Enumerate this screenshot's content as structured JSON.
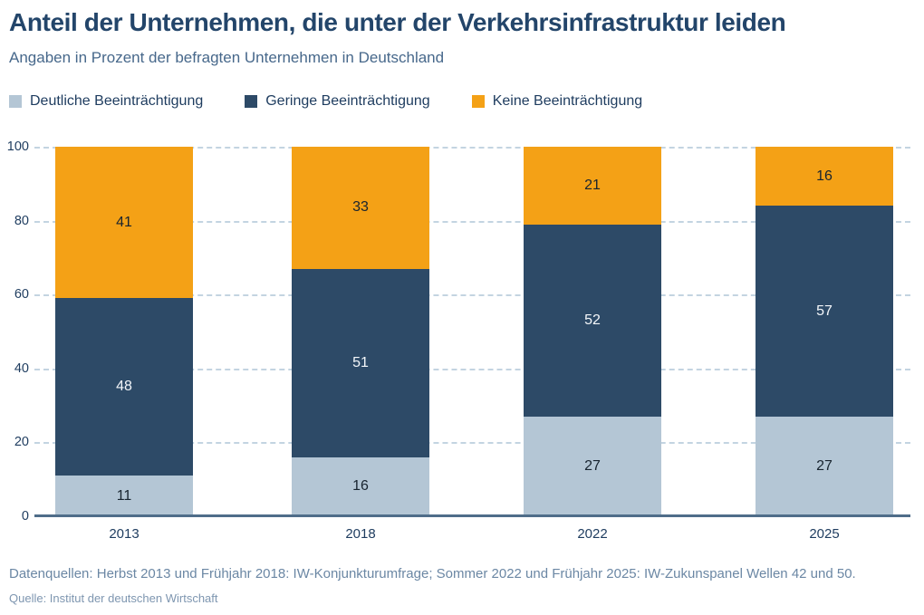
{
  "header": {
    "title": "Anteil der Unternehmen, die unter der Verkehrsinfrastruktur leiden",
    "subtitle": "Angaben in Prozent der befragten Unternehmen in Deutschland"
  },
  "legend": [
    {
      "label": "Deutliche Beeinträchtigung",
      "color": "#b4c6d5"
    },
    {
      "label": "Geringe Beeinträchtigung",
      "color": "#2d4a67"
    },
    {
      "label": "Keine Beeinträchtigung",
      "color": "#f4a116"
    }
  ],
  "chart_data": {
    "type": "bar",
    "stacked": true,
    "title": "Anteil der Unternehmen, die unter der Verkehrsinfrastruktur leiden",
    "subtitle": "Angaben in Prozent der befragten Unternehmen in Deutschland",
    "categories": [
      "2013",
      "2018",
      "2022",
      "2025"
    ],
    "series": [
      {
        "name": "Deutliche Beeinträchtigung",
        "color": "#b4c6d5",
        "label_color": "#18242f",
        "values": [
          11,
          16,
          27,
          27
        ]
      },
      {
        "name": "Geringe Beeinträchtigung",
        "color": "#2d4a67",
        "label_color": "#f4f7fa",
        "values": [
          48,
          51,
          52,
          57
        ]
      },
      {
        "name": "Keine Beeinträchtigung",
        "color": "#f4a116",
        "label_color": "#18242f",
        "values": [
          41,
          33,
          21,
          16
        ]
      }
    ],
    "y_ticks": [
      0,
      20,
      40,
      60,
      80,
      100
    ],
    "ylim": [
      0,
      100
    ],
    "grid": "horizontal-dashed",
    "legend_position": "top",
    "colors": {
      "grid": "#c3d4e1",
      "axis": "#4f6d89",
      "tick_text": "#1e3c5f"
    }
  },
  "footer": {
    "sources_line": "Datenquellen: Herbst 2013 und Frühjahr 2018: IW-Konjunkturumfrage; Sommer 2022 und Frühjahr 2025: IW-Zukunspanel Wellen 42 und 50.",
    "source_line": "Quelle: Institut der deutschen Wirtschaft"
  }
}
